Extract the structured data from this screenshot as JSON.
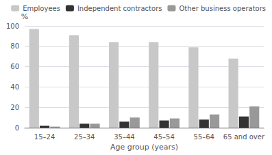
{
  "chart_data": {
    "type": "bar",
    "categories": [
      "15–24",
      "25–34",
      "35–44",
      "45–54",
      "55–64",
      "65 and over"
    ],
    "series": [
      {
        "name": "Employees",
        "color": "#c8c8c8",
        "values": [
          97,
          91,
          84,
          84,
          79,
          68
        ]
      },
      {
        "name": "Independent contractors",
        "color": "#333333",
        "values": [
          2,
          4,
          6,
          7,
          8,
          11
        ]
      },
      {
        "name": "Other business operators",
        "color": "#999999",
        "values": [
          1,
          4,
          10,
          9,
          13,
          21
        ]
      }
    ],
    "xlabel": "Age group (years)",
    "ylabel": "%",
    "ylim": [
      0,
      100
    ],
    "yticks": [
      0,
      20,
      40,
      60,
      80,
      100
    ],
    "grid": true,
    "legend": "upper right"
  }
}
